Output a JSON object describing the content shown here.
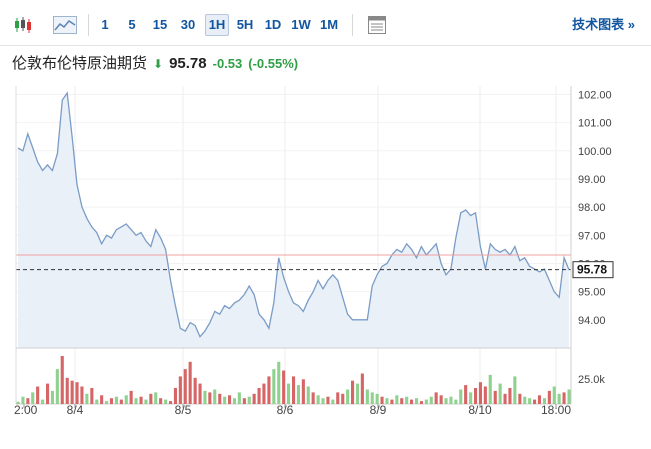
{
  "toolbar": {
    "icons": [
      "candlestick-icon",
      "area-chart-icon",
      "table-view-icon"
    ],
    "intervals": [
      "1",
      "5",
      "15",
      "30",
      "1H",
      "5H",
      "1D",
      "1W",
      "1M"
    ],
    "active_interval": "1H",
    "tech_chart_label": "技术图表 »"
  },
  "quote": {
    "title": "伦敦布伦特原油期货",
    "direction_icon": "down-arrow-icon",
    "price": "95.78",
    "change": "-0.53",
    "change_pct": "(-0.55%)",
    "down_color": "#2e9f44"
  },
  "chart_data": {
    "type": "area",
    "x_ticks": [
      "2:00",
      "8/4",
      "8/5",
      "8/6",
      "8/9",
      "8/10",
      "18:00"
    ],
    "y_ticks": [
      "102.00",
      "101.00",
      "100.00",
      "99.00",
      "98.00",
      "97.00",
      "96.00",
      "95.00",
      "94.00"
    ],
    "ylim": [
      93.0,
      102.3
    ],
    "current_price": 95.78,
    "current_label": "95.78",
    "reference_level": 96.3,
    "prices": [
      100.1,
      100.0,
      100.6,
      100.1,
      99.6,
      99.3,
      99.5,
      99.3,
      99.9,
      101.8,
      102.05,
      100.5,
      98.8,
      98.0,
      97.6,
      97.3,
      97.1,
      96.7,
      97.0,
      96.9,
      97.2,
      97.3,
      97.4,
      97.2,
      97.0,
      97.1,
      96.8,
      96.6,
      97.2,
      96.9,
      96.5,
      95.4,
      94.5,
      93.7,
      93.6,
      93.9,
      93.8,
      93.4,
      93.6,
      93.9,
      94.3,
      94.2,
      94.5,
      94.4,
      94.6,
      94.7,
      94.9,
      95.2,
      94.9,
      94.2,
      94.0,
      93.7,
      94.6,
      96.2,
      95.5,
      95.0,
      94.6,
      94.5,
      94.3,
      94.7,
      95.0,
      95.4,
      95.1,
      95.4,
      95.6,
      95.4,
      94.8,
      94.2,
      94.0,
      94.0,
      94.0,
      94.0,
      95.2,
      95.6,
      95.9,
      96.0,
      96.3,
      96.5,
      96.4,
      96.7,
      96.5,
      96.2,
      96.6,
      96.3,
      96.5,
      96.7,
      96.0,
      95.6,
      95.8,
      96.9,
      97.8,
      97.9,
      97.7,
      97.8,
      96.6,
      95.8,
      96.7,
      96.5,
      96.4,
      96.5,
      96.3,
      96.6,
      96.1,
      96.2,
      95.9,
      95.8,
      95.7,
      95.8,
      95.4,
      95.0,
      94.8,
      96.2,
      95.78
    ],
    "volume_label": "25.0k",
    "volume_max": 33000,
    "volumes": [
      1500,
      5000,
      4000,
      8000,
      12000,
      3000,
      14000,
      9000,
      24000,
      33000,
      18000,
      16000,
      15000,
      12000,
      7000,
      11000,
      3000,
      6000,
      2000,
      4000,
      5000,
      3000,
      6000,
      9000,
      4000,
      5000,
      3000,
      7000,
      8000,
      4000,
      3000,
      2000,
      11000,
      19000,
      24000,
      29000,
      18000,
      14000,
      9000,
      8000,
      10000,
      7000,
      5000,
      6000,
      4000,
      8000,
      4000,
      5000,
      7000,
      11000,
      14000,
      19000,
      24000,
      29000,
      23000,
      14000,
      19000,
      13000,
      17000,
      12000,
      8000,
      6000,
      4000,
      5000,
      3000,
      8000,
      7000,
      10000,
      16000,
      14000,
      21000,
      10000,
      8000,
      7000,
      5000,
      4000,
      3000,
      6000,
      4000,
      5000,
      3000,
      4000,
      2000,
      3000,
      5000,
      8000,
      6000,
      4000,
      5000,
      3000,
      10000,
      13000,
      8000,
      11000,
      15000,
      12000,
      20000,
      9000,
      14000,
      7000,
      11000,
      19000,
      7000,
      5000,
      4000,
      3000,
      6000,
      4000,
      9000,
      12000,
      7000,
      8000,
      10000
    ],
    "volume_up": [
      true,
      true,
      false,
      true,
      false,
      true,
      false,
      true,
      true,
      false,
      false,
      false,
      false,
      false,
      true,
      false,
      true,
      false,
      true,
      false,
      true,
      false,
      true,
      false,
      true,
      false,
      true,
      false,
      true,
      false,
      true,
      false,
      false,
      false,
      false,
      false,
      false,
      false,
      true,
      false,
      true,
      false,
      true,
      false,
      true,
      true,
      false,
      true,
      false,
      false,
      false,
      false,
      true,
      true,
      false,
      true,
      false,
      true,
      false,
      true,
      false,
      true,
      true,
      false,
      true,
      false,
      false,
      true,
      false,
      true,
      false,
      true,
      true,
      true,
      false,
      true,
      false,
      true,
      false,
      true,
      false,
      true,
      false,
      true,
      true,
      false,
      false,
      true,
      true,
      true,
      true,
      false,
      true,
      false,
      false,
      false,
      true,
      false,
      true,
      false,
      false,
      true,
      false,
      true,
      true,
      false,
      false,
      true,
      false,
      true,
      true,
      false,
      true
    ],
    "colors": {
      "line": "#7a9cc6",
      "fill": "#e9f0f8",
      "up": "#8fd18f",
      "down": "#d66565",
      "ref": "#f0a0a0"
    }
  }
}
